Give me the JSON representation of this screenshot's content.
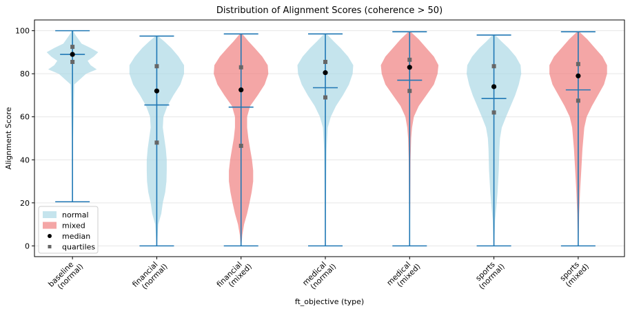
{
  "chart_data": {
    "type": "violin",
    "title": "Distribution of Alignment Scores (coherence > 50)",
    "xlabel": "ft_objective (type)",
    "ylabel": "Alignment Score",
    "ylim": [
      -5,
      105
    ],
    "yticks": [
      0,
      20,
      40,
      60,
      80,
      100
    ],
    "grid": true,
    "legend": {
      "placement": "lower-left",
      "entries": [
        {
          "label": "normal",
          "kind": "patch",
          "color": "#add8e6"
        },
        {
          "label": "mixed",
          "kind": "patch",
          "color": "#f08080"
        },
        {
          "label": "median",
          "kind": "dot",
          "color": "#000000"
        },
        {
          "label": "quartiles",
          "kind": "square",
          "color": "#666666"
        }
      ]
    },
    "colors": {
      "normal": "#add8e6",
      "mixed": "#f08080",
      "line": "#1f77b4",
      "median": "#000000",
      "quartile": "#666666"
    },
    "groups": [
      {
        "label_line1": "baseline",
        "label_line2": "(normal)",
        "type": "normal",
        "min": 20.5,
        "max": 100,
        "mean": 89,
        "median": 89,
        "q1": 85.5,
        "q3": 92.5,
        "density": [
          [
            20.5,
            0.01
          ],
          [
            50,
            0.02
          ],
          [
            75,
            0.06
          ],
          [
            80,
            0.45
          ],
          [
            82,
            0.8
          ],
          [
            84,
            0.6
          ],
          [
            86,
            0.5
          ],
          [
            88,
            0.7
          ],
          [
            90,
            0.85
          ],
          [
            92,
            0.6
          ],
          [
            94,
            0.3
          ],
          [
            96,
            0.2
          ],
          [
            98,
            0.1
          ],
          [
            100,
            0.02
          ]
        ]
      },
      {
        "label_line1": "financial",
        "label_line2": "(normal)",
        "type": "normal",
        "min": 0,
        "max": 97.5,
        "mean": 65.5,
        "median": 72,
        "q1": 48,
        "q3": 83.5,
        "density": [
          [
            0,
            0.01
          ],
          [
            10,
            0.05
          ],
          [
            15,
            0.15
          ],
          [
            20,
            0.2
          ],
          [
            25,
            0.28
          ],
          [
            30,
            0.32
          ],
          [
            35,
            0.33
          ],
          [
            40,
            0.33
          ],
          [
            45,
            0.3
          ],
          [
            50,
            0.25
          ],
          [
            55,
            0.2
          ],
          [
            60,
            0.22
          ],
          [
            65,
            0.35
          ],
          [
            70,
            0.55
          ],
          [
            75,
            0.78
          ],
          [
            80,
            0.9
          ],
          [
            84,
            0.9
          ],
          [
            88,
            0.72
          ],
          [
            92,
            0.48
          ],
          [
            95,
            0.25
          ],
          [
            97.5,
            0.04
          ]
        ]
      },
      {
        "label_line1": "financial",
        "label_line2": "(mixed)",
        "type": "mixed",
        "min": 0,
        "max": 98.5,
        "mean": 64.5,
        "median": 72.5,
        "q1": 46.5,
        "q3": 83,
        "density": [
          [
            0,
            0.01
          ],
          [
            5,
            0.04
          ],
          [
            10,
            0.1
          ],
          [
            15,
            0.2
          ],
          [
            20,
            0.28
          ],
          [
            25,
            0.35
          ],
          [
            30,
            0.4
          ],
          [
            35,
            0.4
          ],
          [
            40,
            0.36
          ],
          [
            45,
            0.3
          ],
          [
            50,
            0.24
          ],
          [
            55,
            0.2
          ],
          [
            60,
            0.2
          ],
          [
            65,
            0.3
          ],
          [
            70,
            0.55
          ],
          [
            75,
            0.78
          ],
          [
            80,
            0.9
          ],
          [
            84,
            0.88
          ],
          [
            88,
            0.7
          ],
          [
            92,
            0.45
          ],
          [
            95,
            0.25
          ],
          [
            98.5,
            0.04
          ]
        ]
      },
      {
        "label_line1": "medical",
        "label_line2": "(normal)",
        "type": "normal",
        "min": 0,
        "max": 98.5,
        "mean": 73.5,
        "median": 80.5,
        "q1": 69,
        "q3": 85.5,
        "density": [
          [
            0,
            0.01
          ],
          [
            20,
            0.02
          ],
          [
            35,
            0.03
          ],
          [
            45,
            0.04
          ],
          [
            55,
            0.08
          ],
          [
            60,
            0.18
          ],
          [
            65,
            0.35
          ],
          [
            70,
            0.58
          ],
          [
            75,
            0.78
          ],
          [
            80,
            0.9
          ],
          [
            84,
            0.92
          ],
          [
            88,
            0.75
          ],
          [
            92,
            0.5
          ],
          [
            95,
            0.28
          ],
          [
            98.5,
            0.04
          ]
        ]
      },
      {
        "label_line1": "medical",
        "label_line2": "(mixed)",
        "type": "mixed",
        "min": 0,
        "max": 99.5,
        "mean": 77,
        "median": 83,
        "q1": 72,
        "q3": 86.5,
        "density": [
          [
            0,
            0.01
          ],
          [
            20,
            0.02
          ],
          [
            40,
            0.03
          ],
          [
            50,
            0.05
          ],
          [
            55,
            0.08
          ],
          [
            60,
            0.14
          ],
          [
            65,
            0.3
          ],
          [
            70,
            0.55
          ],
          [
            75,
            0.8
          ],
          [
            80,
            0.92
          ],
          [
            84,
            0.95
          ],
          [
            88,
            0.8
          ],
          [
            92,
            0.55
          ],
          [
            96,
            0.3
          ],
          [
            99.5,
            0.04
          ]
        ]
      },
      {
        "label_line1": "sports",
        "label_line2": "(normal)",
        "type": "normal",
        "min": 0,
        "max": 98,
        "mean": 68.5,
        "median": 74,
        "q1": 62,
        "q3": 83.5,
        "density": [
          [
            0,
            0.01
          ],
          [
            12,
            0.04
          ],
          [
            18,
            0.08
          ],
          [
            25,
            0.12
          ],
          [
            35,
            0.16
          ],
          [
            45,
            0.18
          ],
          [
            50,
            0.2
          ],
          [
            55,
            0.26
          ],
          [
            60,
            0.4
          ],
          [
            65,
            0.55
          ],
          [
            70,
            0.7
          ],
          [
            75,
            0.82
          ],
          [
            80,
            0.9
          ],
          [
            84,
            0.88
          ],
          [
            88,
            0.72
          ],
          [
            92,
            0.48
          ],
          [
            95,
            0.25
          ],
          [
            98,
            0.04
          ]
        ]
      },
      {
        "label_line1": "sports",
        "label_line2": "(mixed)",
        "type": "mixed",
        "min": 0,
        "max": 99.5,
        "mean": 72.5,
        "median": 79,
        "q1": 67.5,
        "q3": 84.5,
        "density": [
          [
            0,
            0.01
          ],
          [
            15,
            0.03
          ],
          [
            25,
            0.06
          ],
          [
            35,
            0.1
          ],
          [
            45,
            0.14
          ],
          [
            55,
            0.2
          ],
          [
            60,
            0.28
          ],
          [
            65,
            0.45
          ],
          [
            70,
            0.65
          ],
          [
            75,
            0.85
          ],
          [
            80,
            0.95
          ],
          [
            84,
            0.95
          ],
          [
            88,
            0.8
          ],
          [
            92,
            0.55
          ],
          [
            96,
            0.3
          ],
          [
            99.5,
            0.04
          ]
        ]
      }
    ]
  }
}
